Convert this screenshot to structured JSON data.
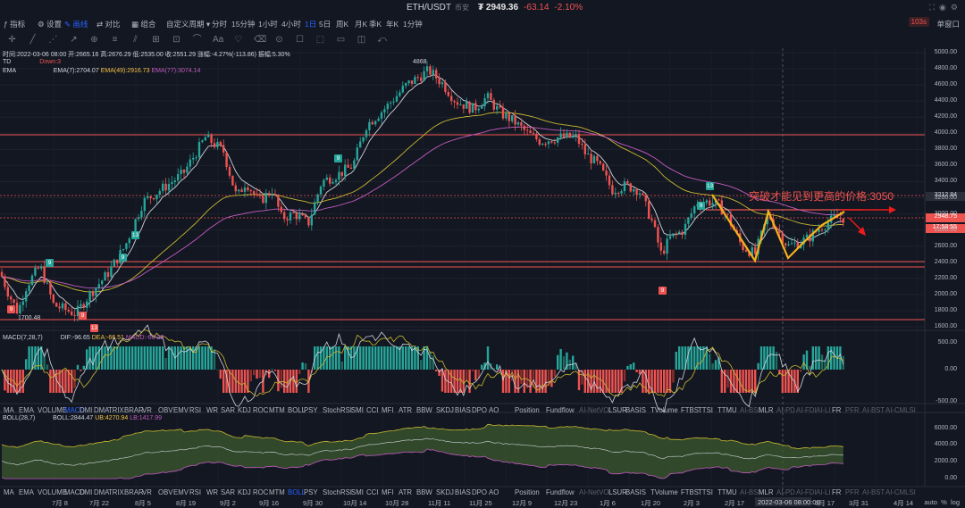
{
  "header": {
    "pair": "ETH/USDT",
    "exchange": "币安",
    "price": "₮ 2949.36",
    "change": "-63.14",
    "change_pct": "-2.10%"
  },
  "toolbar": {
    "items": [
      "指标",
      "设置",
      "画线",
      "对比",
      "组合",
      "自定义周期",
      "分时",
      "15分钟",
      "1小时",
      "4小时",
      "1日",
      "5日",
      "周K",
      "月K",
      "季K",
      "年K",
      "1分钟"
    ],
    "active_period": "1日",
    "timer": "103s",
    "window_label": "单窗口"
  },
  "ohlc": {
    "line": "时间:2022-03-06 08:00 开:2665.16 高:2676.29 低:2535.00 收:2551.29 涨幅:-4.27%(-113.86) 振幅:5.30%"
  },
  "indicators_main": {
    "td": "TD",
    "td_value": "Down:3",
    "ema": "EMA",
    "ema7": "EMA(7):2704.07",
    "ema49": "EMA(49):2916.73",
    "ema77": "EMA(77):3074.14"
  },
  "annotations": {
    "high": "4868",
    "low": "1700.48",
    "target": "突破才能见到更高的价格:3050"
  },
  "price_axis": [
    "5000.00",
    "4800.00",
    "4600.00",
    "4400.00",
    "4200.00",
    "4000.00",
    "3800.00",
    "3600.00",
    "3400.00",
    "3200.00",
    "3000.00",
    "2800.00",
    "2600.00",
    "2400.00",
    "2200.00",
    "2000.00",
    "1800.00",
    "1600.00"
  ],
  "price_tags": {
    "level": "3212.84",
    "last": "2948.75",
    "countdown": "17:58:55"
  },
  "td_marks": [
    {
      "label": "9",
      "color": "#26a69a"
    },
    {
      "label": "9",
      "color": "#ef5350"
    },
    {
      "label": "13",
      "color": "#ef5350"
    },
    {
      "label": "13",
      "color": "#26a69a"
    },
    {
      "label": "9",
      "color": "#26a69a"
    },
    {
      "label": "9",
      "color": "#26a69a"
    },
    {
      "label": "9",
      "color": "#ef5350"
    },
    {
      "label": "13",
      "color": "#26a69a"
    },
    {
      "label": "9",
      "color": "#26a69a"
    }
  ],
  "macd": {
    "name": "MACD(7,28,7)",
    "dif": "DIF:-96.65",
    "dea": "DEA:-66.51",
    "macd": "MACD:-60.28",
    "axis": [
      "500.00",
      "0.00",
      "-500.00"
    ]
  },
  "boll": {
    "name": "BOLL(28,7)",
    "boll": "BOLL:2844.47",
    "ub": "UB:4270.94",
    "lb": "LB:1417.99",
    "axis": [
      "6000.00",
      "4000.00",
      "2000.00",
      "0.00"
    ]
  },
  "indicator_tabs": [
    "MA",
    "EMA",
    "VOLUME",
    "MACD",
    "DMI",
    "DMA",
    "TRIX",
    "BRAR",
    "VR",
    "OBV",
    "EMV",
    "RSI",
    "WR",
    "SAR",
    "KDJ",
    "ROC",
    "MTM",
    "BOLL",
    "PSY",
    "StochRSI",
    "SMI",
    "CCI",
    "MFI",
    "ATR",
    "BBW",
    "SKDJ",
    "BIAS",
    "DPO",
    "AO",
    "Position",
    "Fundflow",
    "AI-NetVOL",
    "LSUR",
    "BASIS",
    "TVolume",
    "FTBS",
    "TTSI",
    "TTMU",
    "AI-BSI",
    "MLR",
    "AI-PD",
    "AI-FDI",
    "AI-LI",
    "FR",
    "PFR",
    "AI-BST",
    "AI-CMLSI"
  ],
  "tabs_active_row1": "MACD",
  "tabs_active_row2": "BOLL",
  "time_axis": [
    "7月 8",
    "7月 22",
    "8月 5",
    "8月 19",
    "9月 2",
    "9月 16",
    "9月 30",
    "10月 14",
    "10月 28",
    "11月 11",
    "11月 25",
    "12月 9",
    "12月 23",
    "1月 6",
    "1月 20",
    "2月 3",
    "2月 17",
    "2022-03-06 08:00:00",
    "3月 17",
    "3月 31",
    "4月 14"
  ],
  "footer": {
    "zoom": "auto",
    "pct": "%",
    "log": "log"
  }
}
